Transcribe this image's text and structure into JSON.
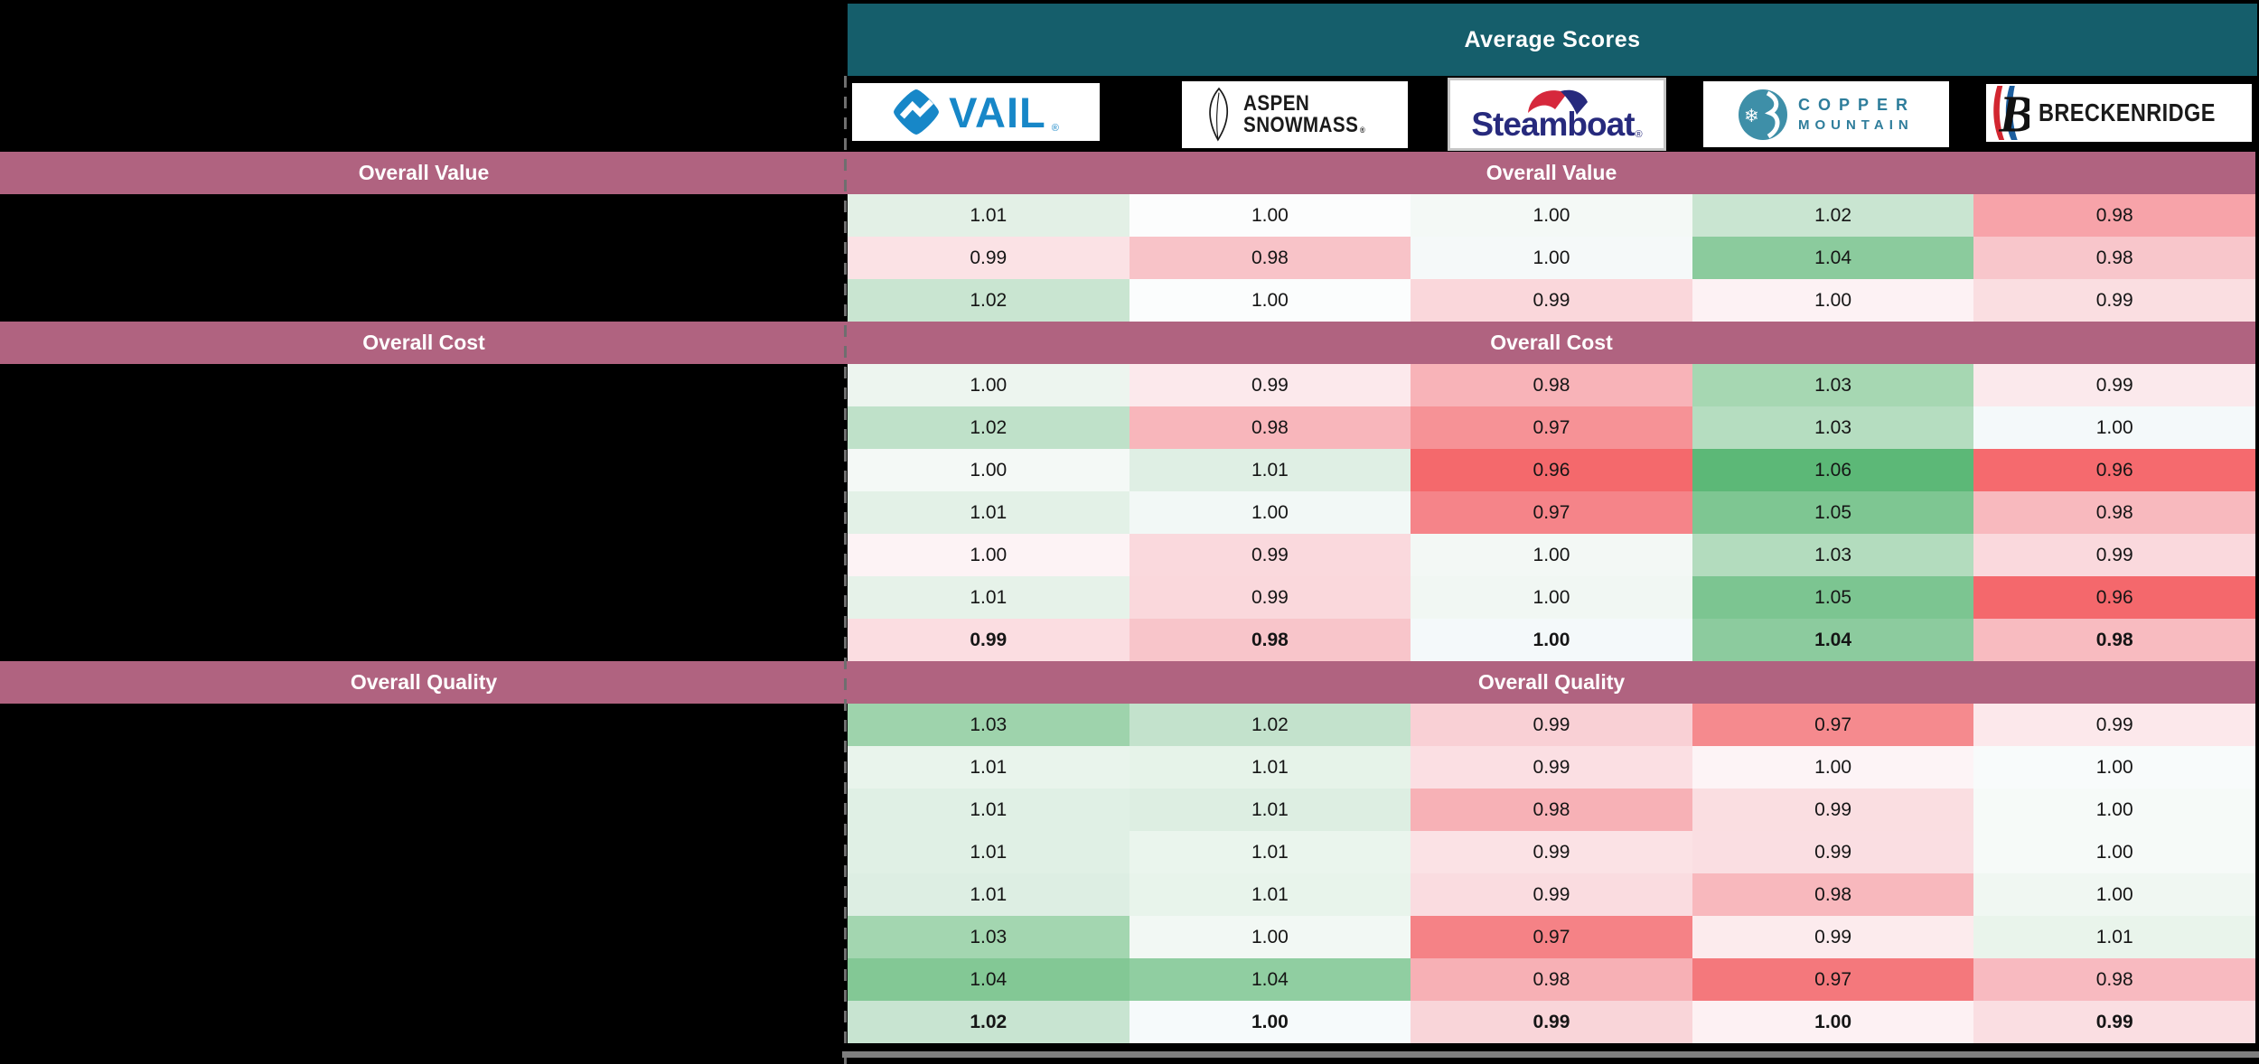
{
  "header": {
    "title": "Average Scores"
  },
  "icons": {
    "snowflake": "❄",
    "registered": "®"
  },
  "colors": {
    "page_bg": "#000000",
    "teal_header": "#155E6B",
    "mauve_header": "#B06380",
    "header_text": "#FFFFFF",
    "cell_text": "#151515",
    "tile_bg": "#FFFFFF",
    "steamboat_frame": "#C6C6C6",
    "dash_gray": "#6F6F6F",
    "bottom_gray": "#7F7F7F",
    "vail_blue": "#1787C8",
    "aspen_black": "#1A1A1A",
    "steamboat_navy": "#272A7D",
    "steamboat_red": "#D6283C",
    "copper_teal": "#3E8FA8",
    "copper_text": "#2E7D9B",
    "breck_red": "#D22630",
    "breck_blue": "#1C5E9E"
  },
  "resorts": [
    {
      "name": "Vail",
      "wordmark": "VAIL"
    },
    {
      "name": "Aspen Snowmass",
      "line1": "ASPEN",
      "line2": "SNOWMASS"
    },
    {
      "name": "Steamboat",
      "wordmark": "Steamboat"
    },
    {
      "name": "Copper Mountain",
      "line1": "COPPER",
      "line2": "MOUNTAIN"
    },
    {
      "name": "Breckenridge",
      "wordmark": "BRECKENRIDGE",
      "monogram": "B"
    }
  ],
  "chart_data": {
    "type": "heatmap",
    "title": "Average Scores",
    "columns": [
      "Vail",
      "Aspen Snowmass",
      "Steamboat",
      "Copper Mountain",
      "Breckenridge"
    ],
    "value_format": "0.00",
    "center": 1.0,
    "scale": {
      "low": "#F4686C",
      "mid": "#FFFFFF",
      "high": "#5CB877"
    },
    "row_labels": "hidden (redacted black panel)",
    "sections": [
      {
        "label": "Overall Value",
        "rows": [
          {
            "values": [
              1.01,
              1.0,
              1.0,
              1.02,
              0.98
            ],
            "colors": [
              "#E3F0E6",
              "#FCFDFD",
              "#F4F9F6",
              "#C9E5D1",
              "#F7A3A9"
            ],
            "bold": false
          },
          {
            "values": [
              0.99,
              0.98,
              1.0,
              1.04,
              0.98
            ],
            "colors": [
              "#FBE2E5",
              "#F8C3C8",
              "#F5F9F9",
              "#8BCB9D",
              "#F8C6CB"
            ],
            "bold": false
          },
          {
            "values": [
              1.02,
              1.0,
              0.99,
              1.0,
              0.99
            ],
            "colors": [
              "#C9E5D1",
              "#FBFDFD",
              "#FAD7DB",
              "#FDF2F4",
              "#FADEE1"
            ],
            "bold": false
          }
        ]
      },
      {
        "label": "Overall Cost",
        "rows": [
          {
            "values": [
              1.0,
              0.99,
              0.98,
              1.03,
              0.99
            ],
            "colors": [
              "#EDF5EF",
              "#FCE9EC",
              "#F8B3B8",
              "#A6D7B2",
              "#FBE9EC"
            ],
            "bold": false
          },
          {
            "values": [
              1.02,
              0.98,
              0.97,
              1.03,
              1.0
            ],
            "colors": [
              "#BFE1C9",
              "#F8B6BB",
              "#F69296",
              "#B5DDC0",
              "#F4F9FA"
            ],
            "bold": false
          },
          {
            "values": [
              1.0,
              1.01,
              0.96,
              1.06,
              0.96
            ],
            "colors": [
              "#F4F9F6",
              "#DFEFE4",
              "#F4696C",
              "#5CB877",
              "#F56A6E"
            ],
            "bold": false
          },
          {
            "values": [
              1.01,
              1.0,
              0.97,
              1.05,
              0.98
            ],
            "colors": [
              "#E3F1E7",
              "#F2F8F6",
              "#F58489",
              "#7EC692",
              "#F8B9BE"
            ],
            "bold": false
          },
          {
            "values": [
              1.0,
              0.99,
              1.0,
              1.03,
              0.99
            ],
            "colors": [
              "#FDF3F5",
              "#FAD9DD",
              "#F3F8F5",
              "#B3DCBE",
              "#FAD9DD"
            ],
            "bold": false
          },
          {
            "values": [
              1.01,
              0.99,
              1.0,
              1.05,
              0.96
            ],
            "colors": [
              "#E6F2E9",
              "#FAD8DC",
              "#F1F7F3",
              "#7CC591",
              "#F4686C"
            ],
            "bold": false
          },
          {
            "values": [
              0.99,
              0.98,
              1.0,
              1.04,
              0.98
            ],
            "colors": [
              "#FBDDE1",
              "#F8C5CA",
              "#F4F9FA",
              "#8CCB9E",
              "#F8BBC0"
            ],
            "bold": true
          }
        ]
      },
      {
        "label": "Overall Quality",
        "rows": [
          {
            "values": [
              1.03,
              1.02,
              0.99,
              0.97,
              0.99
            ],
            "colors": [
              "#9ED3AC",
              "#C3E2CC",
              "#F9D0D5",
              "#F58A8E",
              "#FCE8EB"
            ],
            "bold": false
          },
          {
            "values": [
              1.01,
              1.01,
              0.99,
              1.0,
              1.0
            ],
            "colors": [
              "#E9F4EC",
              "#E6F3E9",
              "#FBDFE3",
              "#FDF4F6",
              "#F8FBFB"
            ],
            "bold": false
          },
          {
            "values": [
              1.01,
              1.01,
              0.98,
              0.99,
              1.0
            ],
            "colors": [
              "#E0F0E5",
              "#DDEEE2",
              "#F7B1B6",
              "#FADEE1",
              "#F6FAF8"
            ],
            "bold": false
          },
          {
            "values": [
              1.01,
              1.01,
              0.99,
              0.99,
              1.0
            ],
            "colors": [
              "#E0F0E5",
              "#EAF5ED",
              "#FBE2E5",
              "#FADEE2",
              "#F6FAF8"
            ],
            "bold": false
          },
          {
            "values": [
              1.01,
              1.01,
              0.99,
              0.98,
              1.0
            ],
            "colors": [
              "#DDEEE3",
              "#E8F4EB",
              "#FADCE0",
              "#F8B8BD",
              "#F0F7F2"
            ],
            "bold": false
          },
          {
            "values": [
              1.03,
              1.0,
              0.97,
              0.99,
              1.01
            ],
            "colors": [
              "#A3D6B0",
              "#F2F8F4",
              "#F58286",
              "#FCEBED",
              "#E9F4EB"
            ],
            "bold": false
          },
          {
            "values": [
              1.04,
              1.04,
              0.98,
              0.97,
              0.98
            ],
            "colors": [
              "#83C895",
              "#90CEA1",
              "#F7B0B5",
              "#F4787C",
              "#F8BAC0"
            ],
            "bold": false
          },
          {
            "values": [
              1.02,
              1.0,
              0.99,
              1.0,
              0.99
            ],
            "colors": [
              "#C8E4D1",
              "#F6FAFB",
              "#F9D5D9",
              "#FDF1F3",
              "#FADEE2"
            ],
            "bold": true
          }
        ]
      }
    ]
  }
}
